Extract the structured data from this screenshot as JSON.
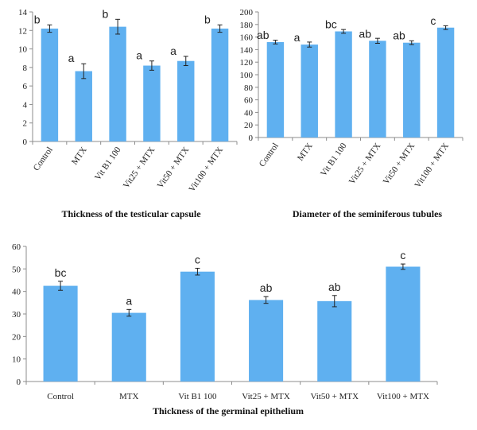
{
  "colors": {
    "bar": "#5fb0f0",
    "axis": "#8c8c8c",
    "text": "#222222"
  },
  "chart_data": [
    {
      "type": "bar",
      "title": "Thickness of the testicular capsule",
      "categories": [
        "Control",
        "MTX",
        "Vit B1 100",
        "Vit25 + MTX",
        "Vit50 + MTX",
        "Vit100 + MTX"
      ],
      "values": [
        12.2,
        7.6,
        12.4,
        8.2,
        8.7,
        12.2
      ],
      "errors": [
        0.4,
        0.8,
        0.8,
        0.5,
        0.5,
        0.4
      ],
      "letters": [
        "b",
        "a",
        "b",
        "a",
        "a",
        "b"
      ],
      "ylim": [
        0,
        14
      ],
      "yticks": [
        0,
        2,
        4,
        6,
        8,
        10,
        12,
        14
      ],
      "grid": false
    },
    {
      "type": "bar",
      "title": "Diameter of the seminiferous tubules",
      "categories": [
        "Control",
        "MTX",
        "Vit B1 100",
        "Vit25 + MTX",
        "Vit50 + MTX",
        "Vit100 + MTX"
      ],
      "values": [
        152,
        148,
        169,
        154,
        151,
        175
      ],
      "errors": [
        3,
        4,
        3,
        4,
        3,
        3
      ],
      "letters": [
        "ab",
        "a",
        "bc",
        "ab",
        "ab",
        "c"
      ],
      "ylim": [
        0,
        200
      ],
      "yticks": [
        0,
        20,
        40,
        60,
        80,
        100,
        120,
        140,
        160,
        180,
        200
      ],
      "grid": false
    },
    {
      "type": "bar",
      "title": "Thickness of the germinal epithelium",
      "categories": [
        "Control",
        "MTX",
        "Vit B1 100",
        "Vit25 + MTX",
        "Vit50 + MTX",
        "Vit100 + MTX"
      ],
      "values": [
        42.5,
        30.5,
        48.8,
        36.2,
        35.7,
        51.0
      ],
      "errors": [
        2.0,
        1.5,
        1.5,
        1.5,
        2.5,
        1.2
      ],
      "letters": [
        "bc",
        "a",
        "c",
        "ab",
        "ab",
        "c"
      ],
      "ylim": [
        0,
        60
      ],
      "yticks": [
        0,
        10,
        20,
        30,
        40,
        50,
        60
      ],
      "grid": false
    }
  ]
}
